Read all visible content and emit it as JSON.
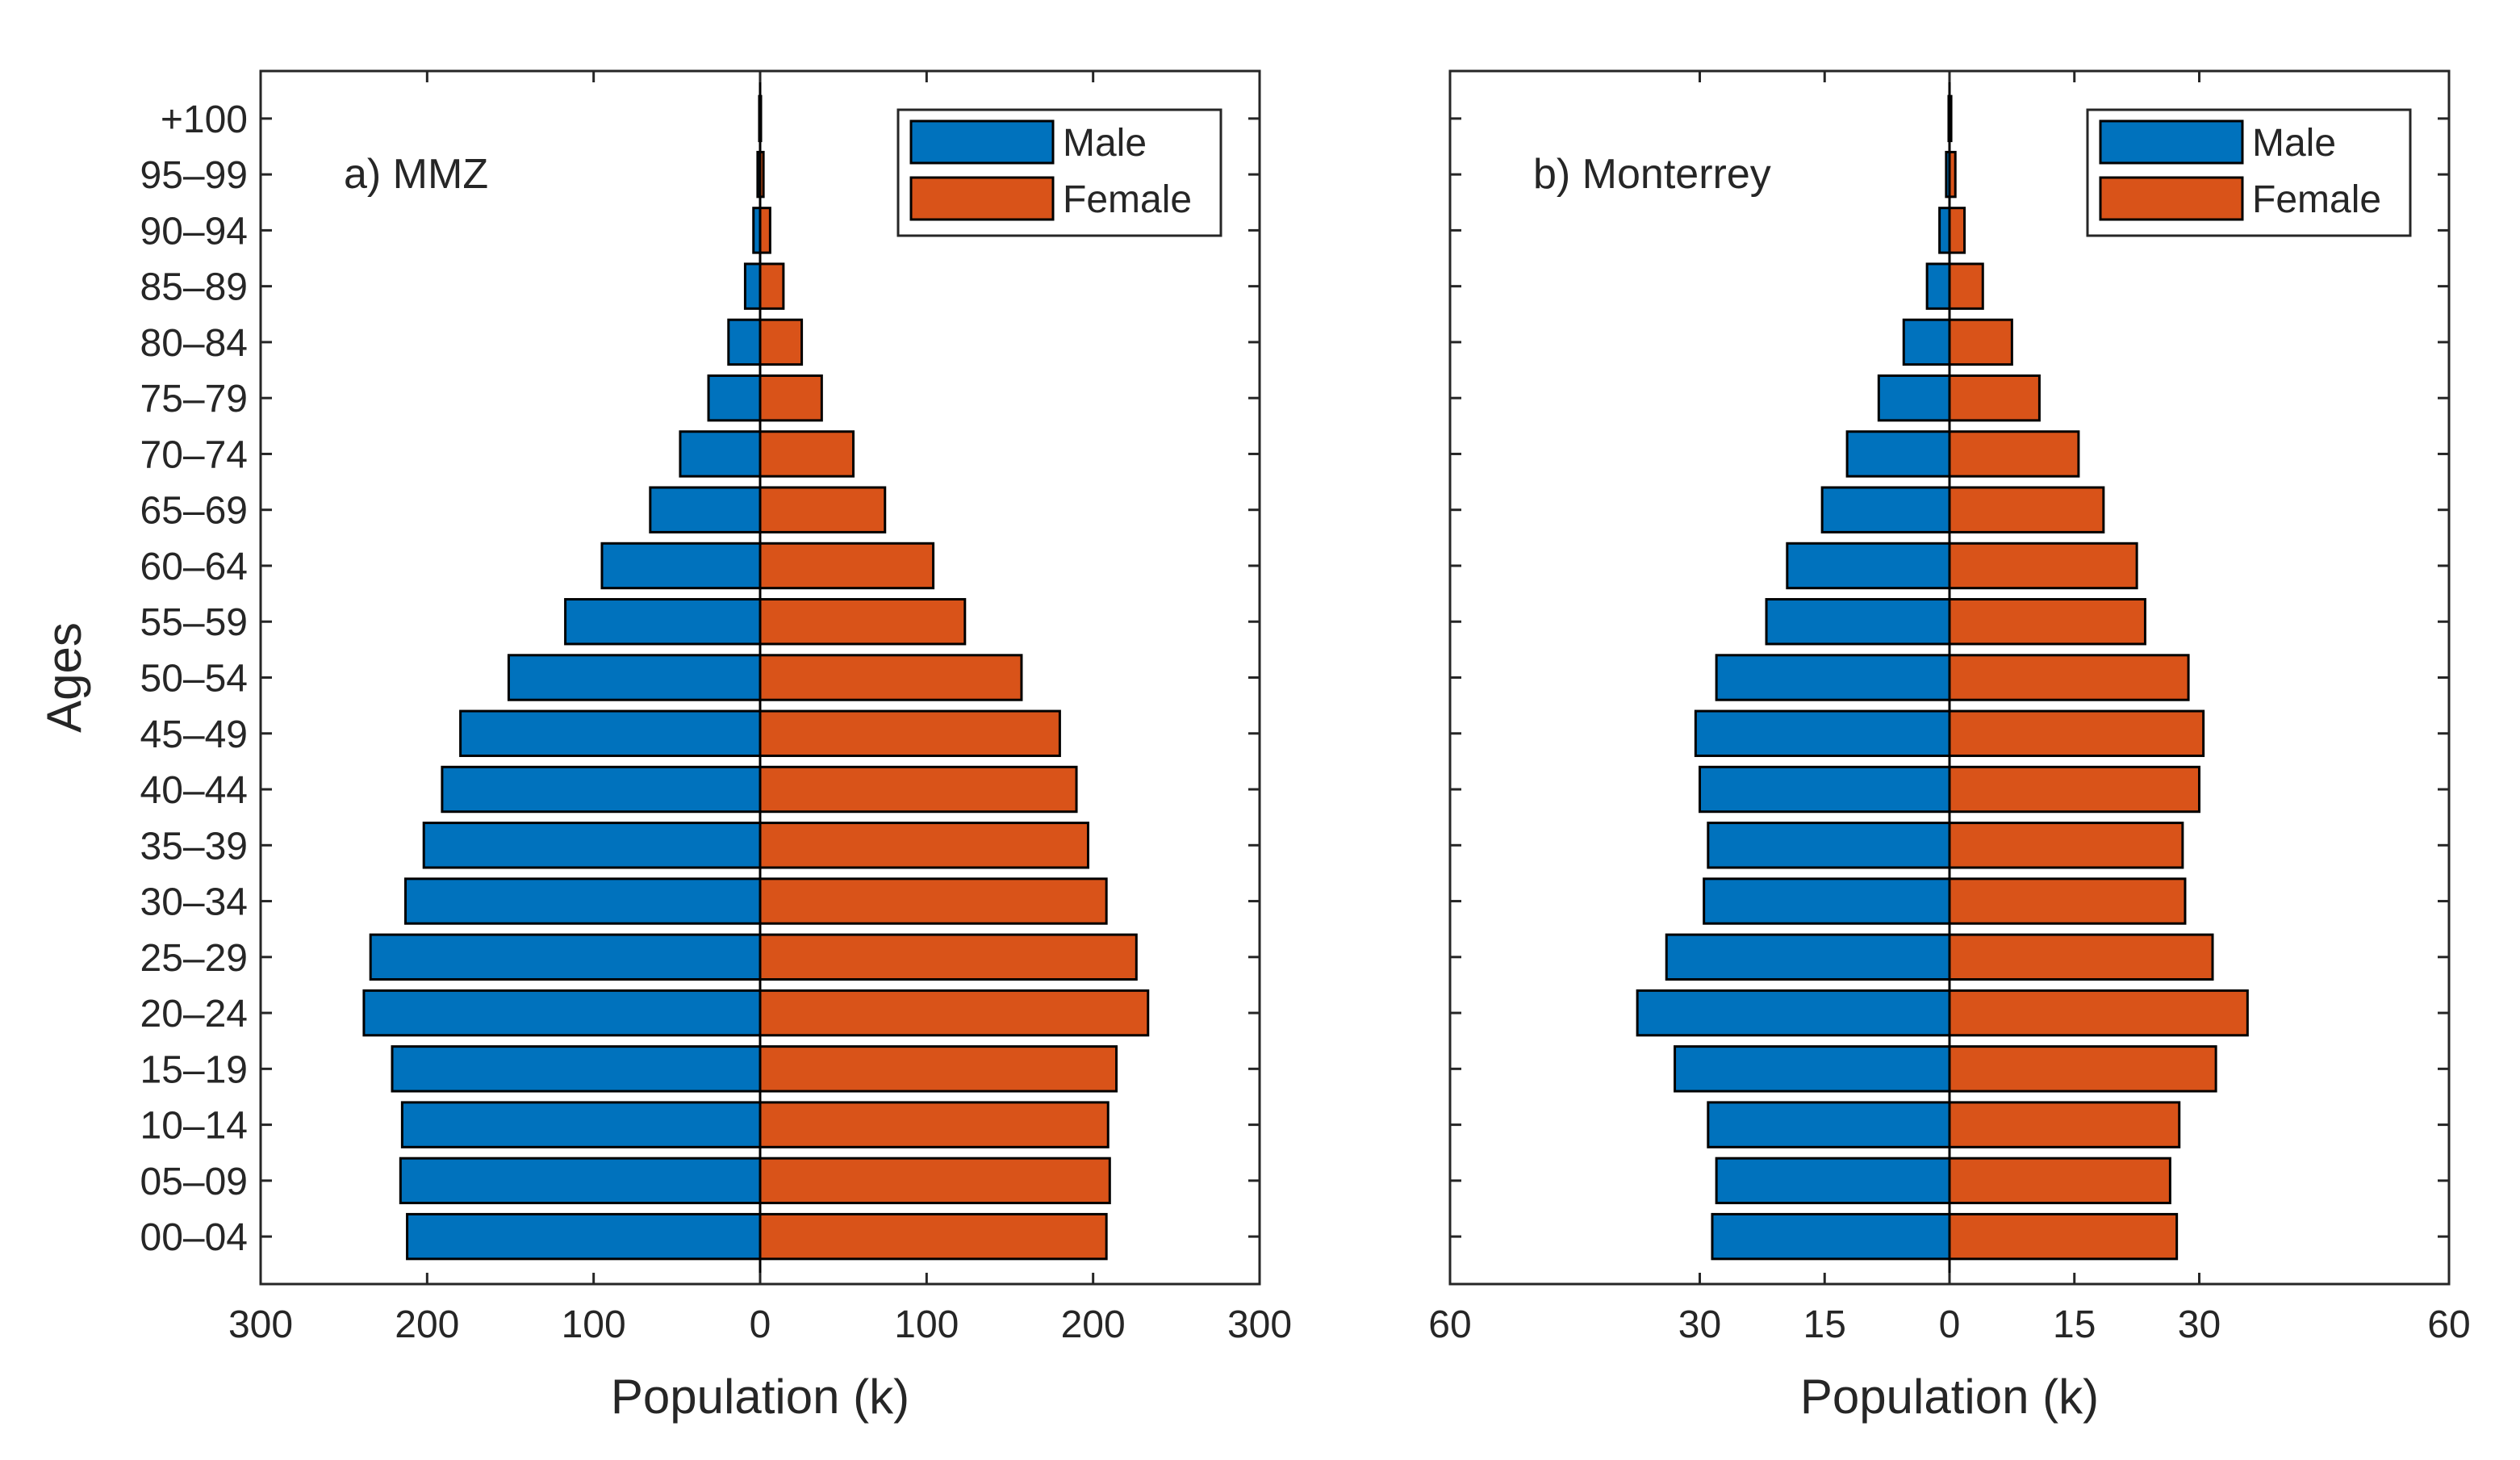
{
  "chart_data": [
    {
      "type": "bar",
      "orientation": "horizontal",
      "panel_label": "a) MMZ",
      "xlabel": "Population (k)",
      "ylabel": "Ages",
      "xlim": [
        -300,
        300
      ],
      "xticks": [
        -300,
        -200,
        -100,
        0,
        100,
        200,
        300
      ],
      "xtick_labels": [
        "300",
        "200",
        "100",
        "0",
        "100",
        "200",
        "300"
      ],
      "categories": [
        "00–04",
        "05–09",
        "10–14",
        "15–19",
        "20–24",
        "25–29",
        "30–34",
        "35–39",
        "40–44",
        "45–49",
        "50–54",
        "55–59",
        "60–64",
        "65–69",
        "70–74",
        "75–79",
        "80–84",
        "85–89",
        "90–94",
        "95–99",
        "+100"
      ],
      "legend": {
        "location": "top-right",
        "entries": [
          "Male",
          "Female"
        ]
      },
      "series": [
        {
          "name": "Male",
          "color": "#0072BD",
          "side": "left",
          "values": [
            212,
            216,
            215,
            221,
            238,
            234,
            213,
            202,
            191,
            180,
            151,
            117,
            95,
            66,
            48,
            31,
            19,
            9,
            4,
            1.5,
            0.5
          ]
        },
        {
          "name": "Female",
          "color": "#D95319",
          "side": "right",
          "values": [
            208,
            210,
            209,
            214,
            233,
            226,
            208,
            197,
            190,
            180,
            157,
            123,
            104,
            75,
            56,
            37,
            25,
            14,
            6,
            2,
            0.5
          ]
        }
      ]
    },
    {
      "type": "bar",
      "orientation": "horizontal",
      "panel_label": "b) Monterrey",
      "xlabel": "Population (k)",
      "ylabel": "",
      "xlim": [
        -60,
        60
      ],
      "xticks": [
        -60,
        -30,
        -15,
        0,
        15,
        30,
        60
      ],
      "xtick_labels": [
        "60",
        "30",
        "15",
        "0",
        "15",
        "30",
        "60"
      ],
      "categories": [
        "00–04",
        "05–09",
        "10–14",
        "15–19",
        "20–24",
        "25–29",
        "30–34",
        "35–39",
        "40–44",
        "45–49",
        "50–54",
        "55–59",
        "60–64",
        "65–69",
        "70–74",
        "75–79",
        "80–84",
        "85–89",
        "90–94",
        "95–99",
        "+100"
      ],
      "legend": {
        "location": "top-right",
        "entries": [
          "Male",
          "Female"
        ]
      },
      "series": [
        {
          "name": "Male",
          "color": "#0072BD",
          "side": "left",
          "values": [
            28.5,
            28,
            29,
            33,
            37.5,
            34,
            29.5,
            29,
            30,
            30.5,
            28,
            22,
            19.5,
            15.3,
            12.3,
            8.5,
            5.5,
            2.7,
            1.2,
            0.4,
            0.1
          ]
        },
        {
          "name": "Female",
          "color": "#D95319",
          "side": "right",
          "values": [
            27.3,
            26.5,
            27.6,
            32,
            35.8,
            31.6,
            28.3,
            28,
            30,
            30.5,
            28.7,
            23.5,
            22.5,
            18.5,
            15.5,
            10.8,
            7.5,
            4,
            1.8,
            0.7,
            0.2
          ]
        }
      ]
    }
  ]
}
